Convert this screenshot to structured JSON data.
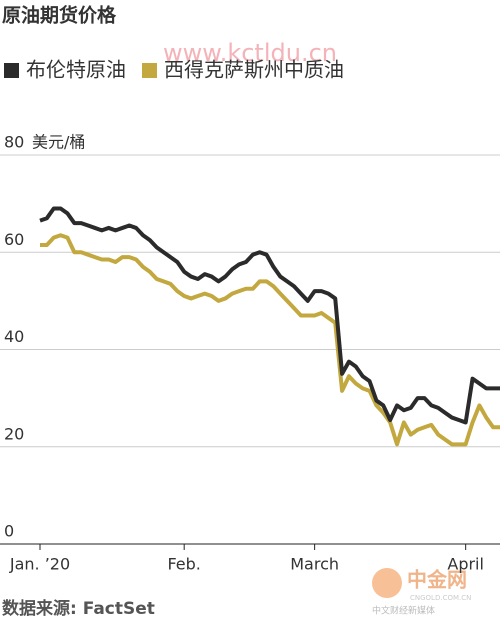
{
  "chart_data": {
    "type": "line",
    "title": "原油期货价格",
    "y_unit": "美元/桶",
    "source": "数据来源: FactSet",
    "watermark": "www.kctldu.cn",
    "logo": {
      "name": "中金网",
      "url": "CNGOLD.COM.CN",
      "slogan": "中文财经新媒体"
    },
    "categories": [
      "Jan. ’20",
      null,
      null,
      null,
      null,
      null,
      null,
      null,
      null,
      null,
      null,
      null,
      null,
      null,
      null,
      null,
      null,
      null,
      null,
      null,
      null,
      "Feb.",
      null,
      null,
      null,
      null,
      null,
      null,
      null,
      null,
      null,
      null,
      null,
      null,
      null,
      null,
      null,
      null,
      null,
      null,
      "March",
      null,
      null,
      null,
      null,
      null,
      null,
      null,
      null,
      null,
      null,
      null,
      null,
      null,
      null,
      null,
      null,
      null,
      null,
      null,
      null,
      null,
      "April",
      null,
      null,
      null,
      null,
      null
    ],
    "series": [
      {
        "name": "布伦特原油",
        "color": "#2b2b2b",
        "values": [
          66.5,
          67,
          69,
          69,
          68,
          66,
          66,
          65.5,
          65,
          64.5,
          65,
          64.5,
          65,
          65.5,
          65,
          63.5,
          62.5,
          61,
          60,
          59,
          58,
          56,
          55,
          54.5,
          55.5,
          55,
          54,
          55,
          56.5,
          57.5,
          58,
          59.5,
          60,
          59.5,
          57,
          55,
          54,
          53,
          51.5,
          50,
          52,
          52,
          51.5,
          50.5,
          35,
          37.5,
          36.5,
          34.5,
          33.5,
          29.5,
          28.5,
          25.5,
          28.5,
          27.5,
          28,
          30,
          30,
          28.5,
          28,
          27,
          26,
          25.5,
          25,
          34,
          33,
          32,
          32,
          32
        ]
      },
      {
        "name": "西得克萨斯州中质油",
        "color": "#c2a83e",
        "values": [
          61.5,
          61.5,
          63,
          63.5,
          63,
          60,
          60,
          59.5,
          59,
          58.5,
          58.5,
          58,
          59,
          59,
          58.5,
          57,
          56,
          54.5,
          54,
          53.5,
          52,
          51,
          50.5,
          51,
          51.5,
          51,
          50,
          50.5,
          51.5,
          52,
          52.5,
          52.5,
          54,
          54,
          53,
          51.5,
          50,
          48.5,
          47,
          47,
          47,
          47.5,
          46.5,
          45.5,
          31.5,
          34.5,
          33,
          32,
          31.5,
          28.5,
          27,
          25,
          20.5,
          25,
          22.5,
          23.5,
          24,
          24.5,
          22.5,
          21.5,
          20.5,
          20.5,
          20.5,
          25,
          28.5,
          26,
          24,
          24
        ]
      }
    ],
    "ylim": [
      0,
      80
    ],
    "yticks": [
      0,
      20,
      40,
      60,
      80
    ],
    "grid": true
  }
}
